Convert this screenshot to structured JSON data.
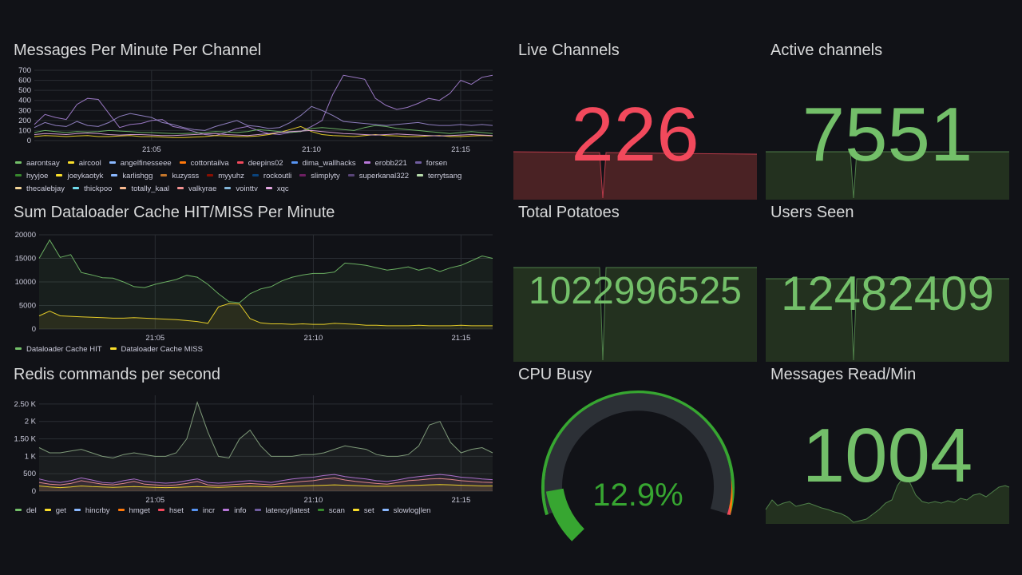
{
  "panels": {
    "messages": {
      "title": "Messages Per Minute Per Channel",
      "legend": [
        {
          "name": "aarontsay",
          "color": "#73bf69"
        },
        {
          "name": "aircool",
          "color": "#fade2a"
        },
        {
          "name": "angelfinesseee",
          "color": "#8ab8ff"
        },
        {
          "name": "cottontailva",
          "color": "#ff780a"
        },
        {
          "name": "deepins02",
          "color": "#f2495c"
        },
        {
          "name": "dima_wallhacks",
          "color": "#5794f2"
        },
        {
          "name": "erobb221",
          "color": "#b877d9"
        },
        {
          "name": "forsen",
          "color": "#705da0"
        },
        {
          "name": "hyyjoe",
          "color": "#37872d"
        },
        {
          "name": "joeykaotyk",
          "color": "#fade2a"
        },
        {
          "name": "karlishgg",
          "color": "#8ab8ff"
        },
        {
          "name": "kuzysss",
          "color": "#c4762a"
        },
        {
          "name": "myyuhz",
          "color": "#890f02"
        },
        {
          "name": "rockoutli",
          "color": "#0a437c"
        },
        {
          "name": "slimplyty",
          "color": "#6d1f62"
        },
        {
          "name": "superkanal322",
          "color": "#584477"
        },
        {
          "name": "terrytsang",
          "color": "#b7dbab"
        },
        {
          "name": "thecalebjay",
          "color": "#f4d598"
        },
        {
          "name": "thickpoo",
          "color": "#70dbed"
        },
        {
          "name": "totally_kaal",
          "color": "#f9ba8f"
        },
        {
          "name": "valkyrae",
          "color": "#f29191"
        },
        {
          "name": "vointtv",
          "color": "#82b5d8"
        },
        {
          "name": "xqc",
          "color": "#e5a8e2"
        }
      ]
    },
    "cache": {
      "title": "Sum Dataloader Cache HIT/MISS Per Minute",
      "legend": [
        {
          "name": "Dataloader Cache HIT",
          "color": "#73bf69"
        },
        {
          "name": "Dataloader Cache MISS",
          "color": "#fade2a"
        }
      ]
    },
    "redis": {
      "title": "Redis commands per second",
      "legend": [
        {
          "name": "del",
          "color": "#73bf69"
        },
        {
          "name": "get",
          "color": "#fade2a"
        },
        {
          "name": "hincrby",
          "color": "#8ab8ff"
        },
        {
          "name": "hmget",
          "color": "#ff780a"
        },
        {
          "name": "hset",
          "color": "#f2495c"
        },
        {
          "name": "incr",
          "color": "#5794f2"
        },
        {
          "name": "info",
          "color": "#b877d9"
        },
        {
          "name": "latency|latest",
          "color": "#705da0"
        },
        {
          "name": "scan",
          "color": "#37872d"
        },
        {
          "name": "set",
          "color": "#fade2a"
        },
        {
          "name": "slowlog|len",
          "color": "#8ab8ff"
        }
      ]
    },
    "live_channels": {
      "title": "Live Channels",
      "value": "226",
      "color": "#f2495c",
      "fill": "#4a2224"
    },
    "active_channels": {
      "title": "Active channels",
      "value": "7551",
      "color": "#73bf69",
      "fill": "#23311f"
    },
    "total_potatoes": {
      "title": "Total Potatoes",
      "value": "1022996525",
      "color": "#73bf69",
      "fill": "#23311f"
    },
    "users_seen": {
      "title": "Users Seen",
      "value": "12482409",
      "color": "#73bf69",
      "fill": "#23311f"
    },
    "cpu_busy": {
      "title": "CPU Busy",
      "value": "12.9%",
      "percent": 12.9,
      "color": "#37a631"
    },
    "messages_read": {
      "title": "Messages Read/Min",
      "value": "1004",
      "color": "#73bf69",
      "fill": "#23311f"
    }
  },
  "chart_data": [
    {
      "type": "line",
      "title": "Messages Per Minute Per Channel",
      "xlabel": "",
      "ylabel": "",
      "x_ticks": [
        "21:05",
        "21:10",
        "21:15"
      ],
      "y_ticks": [
        "0",
        "100",
        "200",
        "300",
        "400",
        "500",
        "600",
        "700"
      ],
      "ylim": [
        0,
        700
      ],
      "x": [
        0,
        1,
        2,
        3,
        4,
        5,
        6,
        7,
        8,
        9,
        10,
        11,
        12,
        13,
        14,
        15,
        16,
        17,
        18,
        19,
        20,
        21,
        22,
        23,
        24,
        25,
        26,
        27,
        28,
        29,
        30,
        31,
        32,
        33,
        34,
        35,
        36,
        37,
        38,
        39,
        40,
        41,
        42,
        43
      ],
      "series": [
        {
          "name": "superkanal322",
          "color": "#a983d6",
          "values": [
            160,
            260,
            230,
            210,
            360,
            420,
            410,
            270,
            130,
            160,
            170,
            200,
            210,
            140,
            120,
            90,
            60,
            50,
            80,
            120,
            140,
            100,
            70,
            60,
            80,
            90,
            140,
            200,
            460,
            650,
            630,
            610,
            420,
            350,
            310,
            330,
            370,
            420,
            400,
            470,
            600,
            560,
            630,
            650
          ]
        },
        {
          "name": "forsen",
          "color": "#9c8bd0",
          "values": [
            130,
            180,
            150,
            140,
            190,
            150,
            140,
            180,
            240,
            270,
            250,
            230,
            180,
            160,
            130,
            110,
            100,
            140,
            170,
            200,
            150,
            140,
            120,
            130,
            180,
            250,
            340,
            300,
            250,
            190,
            180,
            170,
            160,
            150,
            160,
            170,
            180,
            160,
            150,
            150,
            160,
            150,
            160,
            150
          ]
        },
        {
          "name": "aircool",
          "color": "#fade2a",
          "values": [
            40,
            50,
            45,
            40,
            45,
            50,
            40,
            40,
            45,
            50,
            40,
            40,
            35,
            30,
            30,
            35,
            40,
            50,
            45,
            40,
            40,
            45,
            60,
            80,
            110,
            140,
            90,
            60,
            50,
            45,
            40,
            50,
            60,
            50,
            45,
            40,
            40,
            45,
            50,
            40,
            40,
            45,
            50,
            45
          ]
        },
        {
          "name": "aarontsay",
          "color": "#73bf69",
          "values": [
            80,
            100,
            90,
            80,
            90,
            85,
            90,
            100,
            95,
            90,
            80,
            80,
            75,
            70,
            70,
            75,
            80,
            90,
            85,
            80,
            90,
            110,
            100,
            90,
            80,
            90,
            120,
            130,
            120,
            110,
            100,
            130,
            150,
            140,
            120,
            110,
            100,
            90,
            80,
            70,
            80,
            90,
            80,
            70
          ]
        },
        {
          "name": "xqc",
          "color": "#e5a8e2",
          "values": [
            60,
            70,
            65,
            60,
            70,
            75,
            70,
            60,
            55,
            60,
            60,
            55,
            50,
            50,
            55,
            60,
            65,
            70,
            60,
            55,
            50,
            60,
            70,
            80,
            90,
            95,
            100,
            90,
            80,
            70,
            65,
            60,
            55,
            60,
            65,
            60,
            55,
            50,
            45,
            50,
            55,
            60,
            55,
            50
          ]
        }
      ]
    },
    {
      "type": "area",
      "title": "Sum Dataloader Cache HIT/MISS Per Minute",
      "x_ticks": [
        "21:05",
        "21:10",
        "21:15"
      ],
      "y_ticks": [
        "0",
        "5000",
        "10000",
        "15000",
        "20000"
      ],
      "ylim": [
        0,
        20000
      ],
      "x": [
        0,
        1,
        2,
        3,
        4,
        5,
        6,
        7,
        8,
        9,
        10,
        11,
        12,
        13,
        14,
        15,
        16,
        17,
        18,
        19,
        20,
        21,
        22,
        23,
        24,
        25,
        26,
        27,
        28,
        29,
        30,
        31,
        32,
        33,
        34,
        35,
        36,
        37,
        38,
        39,
        40,
        41,
        42,
        43
      ],
      "series": [
        {
          "name": "Dataloader Cache HIT",
          "color": "#73bf69",
          "values": [
            15000,
            18900,
            15200,
            15800,
            12000,
            11500,
            10900,
            10800,
            10000,
            9000,
            8800,
            9500,
            10000,
            10500,
            11400,
            11000,
            9500,
            7500,
            5800,
            5600,
            7500,
            8500,
            9000,
            10200,
            11000,
            11500,
            11800,
            11800,
            12100,
            14000,
            13800,
            13500,
            13000,
            12500,
            12800,
            13200,
            12500,
            13000,
            12200,
            13000,
            13500,
            14500,
            15500,
            15000
          ]
        },
        {
          "name": "Dataloader Cache MISS",
          "color": "#fade2a",
          "values": [
            2800,
            3800,
            2800,
            2700,
            2600,
            2500,
            2400,
            2300,
            2300,
            2400,
            2300,
            2200,
            2100,
            2000,
            1800,
            1600,
            1200,
            4700,
            5400,
            5300,
            2200,
            1300,
            1100,
            1100,
            1000,
            1100,
            1000,
            1000,
            1200,
            1100,
            1000,
            800,
            800,
            700,
            700,
            700,
            800,
            700,
            700,
            700,
            800,
            700,
            700,
            700
          ]
        }
      ]
    },
    {
      "type": "area",
      "title": "Redis commands per second",
      "x_ticks": [
        "21:05",
        "21:10",
        "21:15"
      ],
      "y_ticks": [
        "0",
        "500",
        "1 K",
        "1.50 K",
        "2 K",
        "2.50 K"
      ],
      "ylim": [
        0,
        2750
      ],
      "x": [
        0,
        1,
        2,
        3,
        4,
        5,
        6,
        7,
        8,
        9,
        10,
        11,
        12,
        13,
        14,
        15,
        16,
        17,
        18,
        19,
        20,
        21,
        22,
        23,
        24,
        25,
        26,
        27,
        28,
        29,
        30,
        31,
        32,
        33,
        34,
        35,
        36,
        37,
        38,
        39,
        40,
        41,
        42,
        43
      ],
      "series": [
        {
          "name": "scan",
          "color": "#89a783",
          "values": [
            1250,
            1100,
            1100,
            1150,
            1200,
            1100,
            1000,
            950,
            1050,
            1100,
            1050,
            1000,
            1000,
            1100,
            1500,
            2550,
            1700,
            1000,
            950,
            1500,
            1750,
            1300,
            1000,
            1000,
            1000,
            1050,
            1050,
            1100,
            1200,
            1300,
            1250,
            1200,
            1050,
            1000,
            1000,
            1050,
            1300,
            1900,
            2000,
            1400,
            1100,
            1200,
            1250,
            1100
          ]
        },
        {
          "name": "latency|latest",
          "color": "#b877d9",
          "values": [
            350,
            280,
            250,
            300,
            380,
            320,
            250,
            230,
            300,
            350,
            280,
            250,
            230,
            250,
            300,
            350,
            250,
            230,
            250,
            280,
            300,
            280,
            250,
            300,
            350,
            380,
            400,
            450,
            480,
            420,
            380,
            350,
            300,
            280,
            320,
            380,
            420,
            450,
            480,
            450,
            400,
            380,
            350,
            330
          ]
        },
        {
          "name": "hincrby",
          "color": "#f29191",
          "values": [
            250,
            200,
            180,
            220,
            300,
            250,
            200,
            180,
            220,
            280,
            200,
            180,
            160,
            180,
            220,
            280,
            180,
            160,
            180,
            200,
            220,
            200,
            180,
            220,
            250,
            280,
            300,
            350,
            380,
            320,
            280,
            250,
            220,
            200,
            250,
            300,
            320,
            350,
            360,
            340,
            300,
            280,
            260,
            250
          ]
        },
        {
          "name": "set",
          "color": "#fade2a",
          "values": [
            150,
            120,
            100,
            120,
            150,
            130,
            120,
            110,
            120,
            130,
            120,
            110,
            100,
            110,
            120,
            130,
            120,
            110,
            120,
            130,
            140,
            130,
            120,
            130,
            140,
            150,
            160,
            170,
            180,
            170,
            160,
            150,
            140,
            140,
            150,
            160,
            170,
            180,
            190,
            180,
            170,
            160,
            150,
            150
          ]
        }
      ]
    }
  ]
}
